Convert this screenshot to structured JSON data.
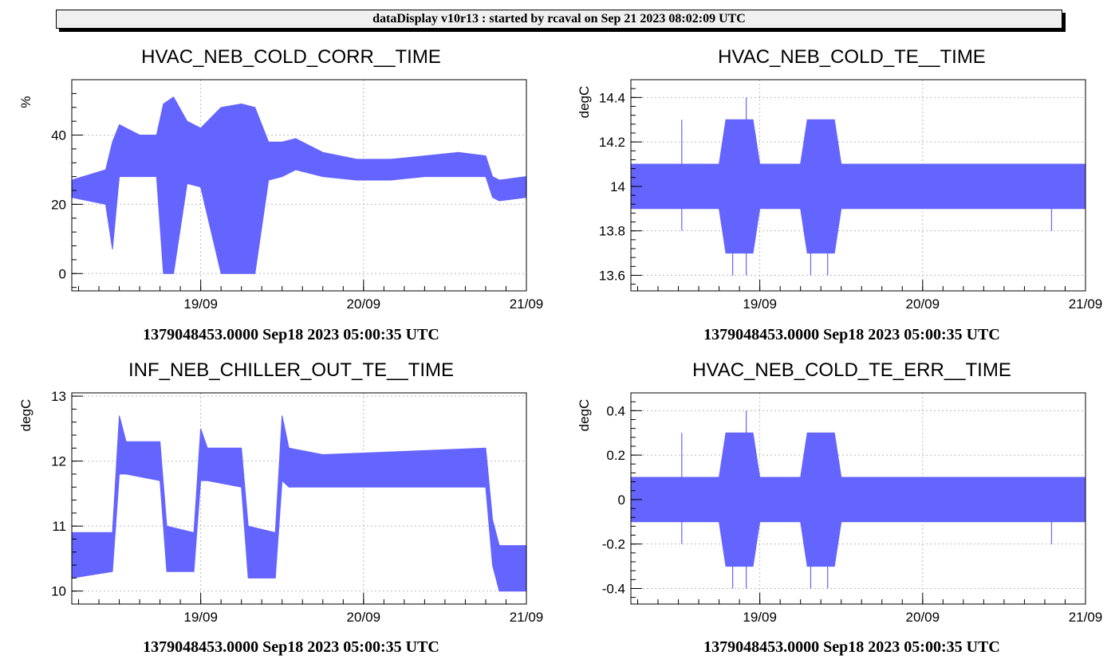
{
  "header": {
    "text": "dataDisplay v10r13 : started by rcaval on Sep 21 2023 08:02:09 UTC"
  },
  "colors": {
    "series": "#6464ff",
    "frame": "#000000",
    "grid": "#bbbbbb"
  },
  "chart_data": [
    {
      "type": "line",
      "title": "HVAC_NEB_COLD_CORR__TIME",
      "ylabel": "%",
      "xlabel": "1379048453.0000 Sep18 2023 05:00:35 UTC",
      "xlim": [
        "2023-09-18 05:00",
        "2023-09-21 00:00"
      ],
      "xticks": [
        {
          "date": "2023-09-19",
          "label": "19/09"
        },
        {
          "date": "2023-09-20",
          "label": "20/09"
        },
        {
          "date": "2023-09-21",
          "label": "21/09"
        }
      ],
      "ylim": [
        -5,
        56
      ],
      "yticks": [
        0,
        20,
        40
      ],
      "ytick_labels": [
        "0",
        "20",
        "40"
      ],
      "grid": true,
      "series": [
        {
          "x": [
            "2023-09-18 05:00",
            "2023-09-18 10:00",
            "2023-09-18 11:00",
            "2023-09-18 12:00",
            "2023-09-18 15:00",
            "2023-09-18 17:30",
            "2023-09-18 18:30",
            "2023-09-18 20:00",
            "2023-09-18 22:00",
            "2023-09-19 00:00",
            "2023-09-19 03:00",
            "2023-09-19 06:00",
            "2023-09-19 08:00",
            "2023-09-19 10:00",
            "2023-09-19 12:00",
            "2023-09-19 14:00",
            "2023-09-19 18:00",
            "2023-09-19 23:00",
            "2023-09-20 04:00",
            "2023-09-20 09:00",
            "2023-09-20 14:00",
            "2023-09-20 18:00",
            "2023-09-20 19:00",
            "2023-09-20 20:00",
            "2023-09-21 00:00"
          ],
          "min": [
            22,
            20,
            7,
            28,
            28,
            28,
            0,
            0,
            26,
            25,
            0,
            0,
            0,
            27,
            28,
            30,
            28,
            27,
            27,
            28,
            28,
            28,
            22,
            21,
            22
          ],
          "max": [
            27,
            30,
            38,
            43,
            40,
            40,
            49,
            51,
            44,
            42,
            48,
            49,
            48,
            38,
            38,
            39,
            35,
            33,
            33,
            34,
            35,
            34,
            28,
            27,
            28
          ]
        }
      ]
    },
    {
      "type": "line",
      "title": "HVAC_NEB_COLD_TE__TIME",
      "ylabel": "degC",
      "xlabel": "1379048453.0000 Sep18 2023 05:00:35 UTC",
      "xlim": [
        "2023-09-18 05:00",
        "2023-09-21 00:00"
      ],
      "xticks": [
        {
          "date": "2023-09-19",
          "label": "19/09"
        },
        {
          "date": "2023-09-20",
          "label": "20/09"
        },
        {
          "date": "2023-09-21",
          "label": "21/09"
        }
      ],
      "ylim": [
        13.53,
        14.48
      ],
      "yticks": [
        13.6,
        13.8,
        14.0,
        14.2,
        14.4
      ],
      "ytick_labels": [
        "13.6",
        "13.8",
        "14",
        "14.2",
        "14.4"
      ],
      "grid": true,
      "series": [
        {
          "x": [
            "2023-09-18 05:00",
            "2023-09-18 12:00",
            "2023-09-18 18:00",
            "2023-09-18 19:00",
            "2023-09-18 23:00",
            "2023-09-19 00:00",
            "2023-09-19 06:00",
            "2023-09-19 07:00",
            "2023-09-19 11:00",
            "2023-09-19 12:00",
            "2023-09-21 00:00"
          ],
          "min": [
            13.9,
            13.9,
            13.9,
            13.7,
            13.7,
            13.9,
            13.9,
            13.7,
            13.7,
            13.9,
            13.9
          ],
          "max": [
            14.1,
            14.1,
            14.1,
            14.3,
            14.3,
            14.1,
            14.1,
            14.3,
            14.3,
            14.1,
            14.1
          ]
        }
      ],
      "spikes": [
        {
          "x": "2023-09-18 12:30",
          "y": [
            13.8,
            14.3
          ]
        },
        {
          "x": "2023-09-18 20:00",
          "y": [
            13.6,
            14.3
          ]
        },
        {
          "x": "2023-09-18 22:00",
          "y": [
            13.6,
            14.4
          ]
        },
        {
          "x": "2023-09-19 07:30",
          "y": [
            13.6,
            14.3
          ]
        },
        {
          "x": "2023-09-19 10:00",
          "y": [
            13.6,
            14.3
          ]
        },
        {
          "x": "2023-09-20 19:00",
          "y": [
            13.8,
            14.1
          ]
        }
      ]
    },
    {
      "type": "line",
      "title": "INF_NEB_CHILLER_OUT_TE__TIME",
      "ylabel": "degC",
      "xlabel": "1379048453.0000 Sep18 2023 05:00:35 UTC",
      "xlim": [
        "2023-09-18 05:00",
        "2023-09-21 00:00"
      ],
      "xticks": [
        {
          "date": "2023-09-19",
          "label": "19/09"
        },
        {
          "date": "2023-09-20",
          "label": "20/09"
        },
        {
          "date": "2023-09-21",
          "label": "21/09"
        }
      ],
      "ylim": [
        9.8,
        13.05
      ],
      "yticks": [
        10,
        11,
        12,
        13
      ],
      "ytick_labels": [
        "10",
        "11",
        "12",
        "13"
      ],
      "grid": true,
      "series": [
        {
          "x": [
            "2023-09-18 05:00",
            "2023-09-18 11:00",
            "2023-09-18 12:00",
            "2023-09-18 13:00",
            "2023-09-18 18:00",
            "2023-09-18 19:00",
            "2023-09-18 23:00",
            "2023-09-19 00:00",
            "2023-09-19 01:00",
            "2023-09-19 06:00",
            "2023-09-19 07:00",
            "2023-09-19 11:00",
            "2023-09-19 12:00",
            "2023-09-19 13:00",
            "2023-09-19 18:00",
            "2023-09-20 18:00",
            "2023-09-20 19:00",
            "2023-09-20 20:00",
            "2023-09-21 00:00"
          ],
          "min": [
            10.2,
            10.3,
            11.8,
            11.8,
            11.7,
            10.3,
            10.3,
            11.7,
            11.7,
            11.6,
            10.2,
            10.2,
            11.7,
            11.6,
            11.6,
            11.6,
            10.4,
            10.0,
            10.0
          ],
          "max": [
            10.9,
            10.9,
            12.7,
            12.3,
            12.3,
            11.0,
            10.9,
            12.5,
            12.2,
            12.2,
            11.0,
            10.9,
            12.7,
            12.2,
            12.1,
            12.2,
            11.1,
            10.7,
            10.7
          ]
        }
      ]
    },
    {
      "type": "line",
      "title": "HVAC_NEB_COLD_TE_ERR__TIME",
      "ylabel": "degC",
      "xlabel": "1379048453.0000 Sep18 2023 05:00:35 UTC",
      "xlim": [
        "2023-09-18 05:00",
        "2023-09-21 00:00"
      ],
      "xticks": [
        {
          "date": "2023-09-19",
          "label": "19/09"
        },
        {
          "date": "2023-09-20",
          "label": "20/09"
        },
        {
          "date": "2023-09-21",
          "label": "21/09"
        }
      ],
      "ylim": [
        -0.47,
        0.48
      ],
      "yticks": [
        -0.4,
        -0.2,
        0,
        0.2,
        0.4
      ],
      "ytick_labels": [
        "-0.4",
        "-0.2",
        "0",
        "0.2",
        "0.4"
      ],
      "grid": true,
      "series": [
        {
          "x": [
            "2023-09-18 05:00",
            "2023-09-18 12:00",
            "2023-09-18 18:00",
            "2023-09-18 19:00",
            "2023-09-18 23:00",
            "2023-09-19 00:00",
            "2023-09-19 06:00",
            "2023-09-19 07:00",
            "2023-09-19 11:00",
            "2023-09-19 12:00",
            "2023-09-21 00:00"
          ],
          "min": [
            -0.1,
            -0.1,
            -0.1,
            -0.3,
            -0.3,
            -0.1,
            -0.1,
            -0.3,
            -0.3,
            -0.1,
            -0.1
          ],
          "max": [
            0.1,
            0.1,
            0.1,
            0.3,
            0.3,
            0.1,
            0.1,
            0.3,
            0.3,
            0.1,
            0.1
          ]
        }
      ],
      "spikes": [
        {
          "x": "2023-09-18 12:30",
          "y": [
            -0.2,
            0.3
          ]
        },
        {
          "x": "2023-09-18 20:00",
          "y": [
            -0.4,
            0.3
          ]
        },
        {
          "x": "2023-09-18 22:00",
          "y": [
            -0.4,
            0.4
          ]
        },
        {
          "x": "2023-09-19 07:30",
          "y": [
            -0.4,
            0.3
          ]
        },
        {
          "x": "2023-09-19 10:00",
          "y": [
            -0.4,
            0.3
          ]
        },
        {
          "x": "2023-09-20 19:00",
          "y": [
            -0.2,
            0.1
          ]
        }
      ]
    }
  ]
}
